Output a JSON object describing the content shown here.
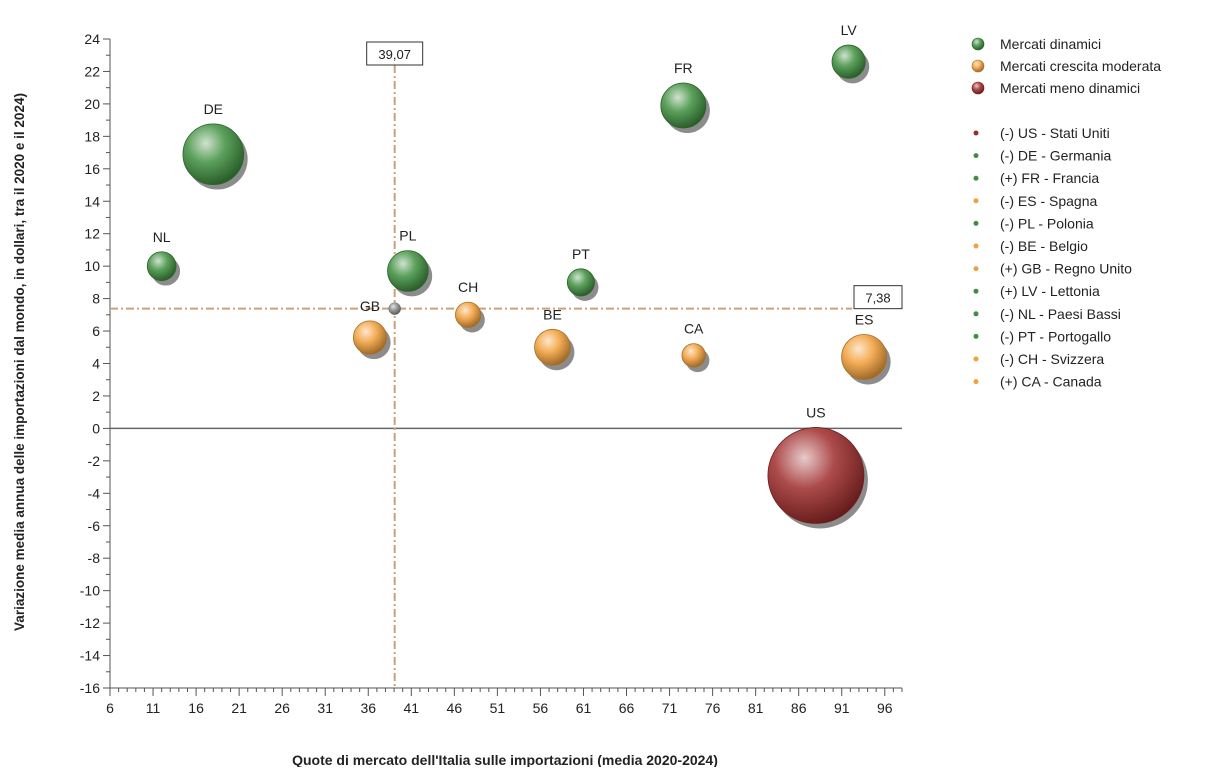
{
  "chart_data": {
    "type": "bubble",
    "xlabel": "Quote di mercato dell'Italia sulle importazioni (media 2020-2024)",
    "ylabel": "Variazione media annua delle importazioni dal mondo, in dollari, tra il 2020 e il 2024)",
    "xlim": [
      6,
      98
    ],
    "ylim": [
      -16,
      24
    ],
    "x_ticks": [
      6,
      11,
      16,
      21,
      26,
      31,
      36,
      41,
      46,
      51,
      56,
      61,
      66,
      71,
      76,
      81,
      86,
      91,
      96
    ],
    "y_ticks": [
      24,
      22,
      20,
      18,
      16,
      14,
      12,
      10,
      8,
      6,
      4,
      2,
      0,
      -2,
      -4,
      -6,
      -8,
      -10,
      -12,
      -14,
      -16
    ],
    "reference_lines": {
      "x_value": 39.07,
      "x_label": "39,07",
      "y_value": 7.38,
      "y_label": "7,38"
    },
    "categories": [
      {
        "key": "dinamici",
        "label": "Mercati dinamici",
        "color": "#3f8f3f"
      },
      {
        "key": "moderata",
        "label": "Mercati crescita moderata",
        "color": "#f2a03a"
      },
      {
        "key": "meno",
        "label": "Mercati meno dinamici",
        "color": "#9e2b2b"
      }
    ],
    "points": [
      {
        "code": "US",
        "x": 88.0,
        "y": -2.9,
        "size": 100,
        "category": "meno",
        "legend": "(-) US - Stati Uniti"
      },
      {
        "code": "DE",
        "x": 18.0,
        "y": 16.9,
        "size": 40,
        "category": "dinamici",
        "legend": "(-) DE - Germania"
      },
      {
        "code": "FR",
        "x": 72.6,
        "y": 19.9,
        "size": 22,
        "category": "dinamici",
        "legend": "(+) FR - Francia"
      },
      {
        "code": "ES",
        "x": 93.6,
        "y": 4.4,
        "size": 22,
        "category": "moderata",
        "legend": "(-) ES - Spagna"
      },
      {
        "code": "PL",
        "x": 40.6,
        "y": 9.7,
        "size": 18,
        "category": "dinamici",
        "legend": "(-) PL - Polonia"
      },
      {
        "code": "BE",
        "x": 57.4,
        "y": 5.0,
        "size": 14,
        "category": "moderata",
        "legend": "(-) BE - Belgio"
      },
      {
        "code": "GB",
        "x": 36.2,
        "y": 5.6,
        "size": 12,
        "category": "moderata",
        "legend": "(+) GB - Regno Unito"
      },
      {
        "code": "LV",
        "x": 91.8,
        "y": 22.6,
        "size": 12,
        "category": "dinamici",
        "legend": "(+) LV - Lettonia"
      },
      {
        "code": "NL",
        "x": 12.0,
        "y": 10.0,
        "size": 9,
        "category": "dinamici",
        "legend": "(-) NL - Paesi Bassi"
      },
      {
        "code": "PT",
        "x": 60.7,
        "y": 9.0,
        "size": 8,
        "category": "dinamici",
        "legend": "(-) PT - Portogallo"
      },
      {
        "code": "CH",
        "x": 47.6,
        "y": 7.0,
        "size": 7,
        "category": "moderata",
        "legend": "(-) CH - Svizzera"
      },
      {
        "code": "CA",
        "x": 73.8,
        "y": 4.5,
        "size": 6,
        "category": "moderata",
        "legend": "(+) CA - Canada"
      }
    ]
  }
}
